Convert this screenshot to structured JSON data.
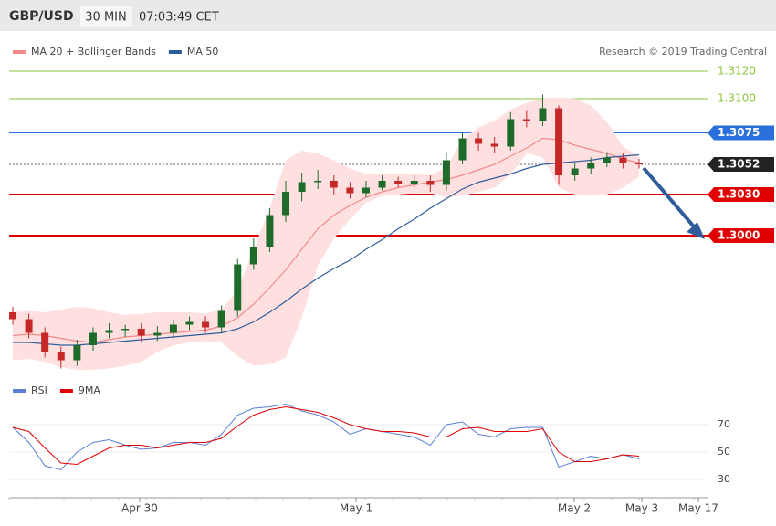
{
  "header": {
    "symbol": "GBP/USD",
    "interval": "30 MIN",
    "time": "07:03:49 CET"
  },
  "credit": "Research © 2019 Trading Central",
  "chart_data": [
    {
      "type": "candlestick",
      "up_color": "#1e6b2a",
      "down_color": "#c62828",
      "ylim": [
        1.2895,
        1.3132
      ],
      "candles": {
        "open": [
          1.2944,
          1.2939,
          1.2929,
          1.2915,
          1.2909,
          1.292,
          1.2929,
          1.2931,
          1.2932,
          1.2927,
          1.2929,
          1.2935,
          1.2937,
          1.2933,
          1.2945,
          1.2979,
          1.2992,
          1.3015,
          1.3032,
          1.3039,
          1.304,
          1.3035,
          1.3031,
          1.3035,
          1.304,
          1.3038,
          1.304,
          1.3037,
          1.3055,
          1.3071,
          1.3067,
          1.3065,
          1.3085,
          1.3084,
          1.3093,
          1.3044,
          1.3049,
          1.3053,
          1.3057,
          1.3053
        ],
        "high": [
          1.2948,
          1.2943,
          1.2933,
          1.2919,
          1.2924,
          1.2933,
          1.2936,
          1.2935,
          1.2936,
          1.2934,
          1.2939,
          1.2941,
          1.2941,
          1.2949,
          1.2983,
          1.2998,
          1.302,
          1.304,
          1.3046,
          1.3048,
          1.3044,
          1.3039,
          1.304,
          1.3044,
          1.3043,
          1.3044,
          1.3044,
          1.306,
          1.3076,
          1.3075,
          1.3072,
          1.309,
          1.3091,
          1.3103,
          1.3095,
          1.3053,
          1.3057,
          1.3061,
          1.306,
          1.3056
        ],
        "low": [
          1.2935,
          1.2925,
          1.2911,
          1.2903,
          1.2905,
          1.2916,
          1.2925,
          1.2926,
          1.2922,
          1.2923,
          1.2925,
          1.2931,
          1.2929,
          1.2929,
          1.2941,
          1.2975,
          1.2988,
          1.301,
          1.3025,
          1.3034,
          1.303,
          1.3027,
          1.3028,
          1.3033,
          1.3035,
          1.3035,
          1.3032,
          1.3033,
          1.3052,
          1.3062,
          1.306,
          1.3062,
          1.3079,
          1.308,
          1.3037,
          1.304,
          1.3045,
          1.305,
          1.3049,
          1.3049
        ],
        "close": [
          1.2939,
          1.2929,
          1.2915,
          1.2909,
          1.292,
          1.2929,
          1.2931,
          1.2932,
          1.2927,
          1.2929,
          1.2935,
          1.2937,
          1.2933,
          1.2945,
          1.2979,
          1.2992,
          1.3015,
          1.3032,
          1.3039,
          1.304,
          1.3035,
          1.3031,
          1.3035,
          1.304,
          1.3038,
          1.304,
          1.3037,
          1.3055,
          1.3071,
          1.3067,
          1.3065,
          1.3085,
          1.3084,
          1.3093,
          1.3044,
          1.3049,
          1.3053,
          1.3057,
          1.3053,
          1.3052
        ]
      },
      "series": [
        {
          "name": "MA 20 + Bollinger Bands",
          "color": "#f08a8a",
          "band_color": "#ffe0e0",
          "values": [
            1.2927,
            1.2928,
            1.2927,
            1.2925,
            1.2923,
            1.2922,
            1.2924,
            1.2926,
            1.2927,
            1.2928,
            1.2929,
            1.293,
            1.2931,
            1.2934,
            1.294,
            1.295,
            1.2962,
            1.2975,
            1.299,
            1.3005,
            1.3015,
            1.3022,
            1.3028,
            1.3032,
            1.3035,
            1.3037,
            1.3039,
            1.3041,
            1.3044,
            1.3048,
            1.3052,
            1.3058,
            1.3064,
            1.3071,
            1.307,
            1.3066,
            1.3063,
            1.306,
            1.3056,
            1.3053
          ],
          "upper": [
            1.2944,
            1.2945,
            1.2944,
            1.2946,
            1.2948,
            1.2947,
            1.2944,
            1.2942,
            1.2943,
            1.2944,
            1.2944,
            1.2944,
            1.2943,
            1.2946,
            1.296,
            1.299,
            1.302,
            1.3055,
            1.3062,
            1.306,
            1.3055,
            1.3049,
            1.3045,
            1.3045,
            1.3045,
            1.3045,
            1.3044,
            1.305,
            1.307,
            1.3079,
            1.3084,
            1.3092,
            1.3097,
            1.31,
            1.3101,
            1.31,
            1.3095,
            1.3083,
            1.3065,
            1.3058
          ],
          "lower": [
            1.2909,
            1.291,
            1.2908,
            1.2904,
            1.2902,
            1.2902,
            1.2903,
            1.2905,
            1.2908,
            1.2915,
            1.292,
            1.2922,
            1.2923,
            1.2922,
            1.2912,
            1.2905,
            1.2906,
            1.2911,
            1.294,
            1.2978,
            1.2998,
            1.3012,
            1.3024,
            1.3029,
            1.303,
            1.3031,
            1.3031,
            1.3028,
            1.3029,
            1.3032,
            1.3035,
            1.3045,
            1.306,
            1.3057,
            1.3035,
            1.303,
            1.3029,
            1.303,
            1.3035,
            1.3043
          ]
        },
        {
          "name": "MA 50",
          "color": "#2f5d9b",
          "values": [
            1.2922,
            1.2922,
            1.2921,
            1.292,
            1.292,
            1.2921,
            1.2922,
            1.2923,
            1.2924,
            1.2925,
            1.2926,
            1.2927,
            1.2928,
            1.2929,
            1.2932,
            1.2937,
            1.2944,
            1.2952,
            1.2961,
            1.2969,
            1.2976,
            1.2982,
            1.299,
            1.2997,
            1.3005,
            1.3012,
            1.302,
            1.3027,
            1.3034,
            1.3039,
            1.3042,
            1.3045,
            1.3049,
            1.3052,
            1.3053,
            1.3054,
            1.3055,
            1.3057,
            1.3058,
            1.3059
          ]
        }
      ],
      "levels": [
        {
          "value": 1.312,
          "label": "1.3120",
          "color": "#8cc63f",
          "line_style": "thin",
          "box": false
        },
        {
          "value": 1.31,
          "label": "1.3100",
          "color": "#8cc63f",
          "line_style": "thin",
          "box": false
        },
        {
          "value": 1.3075,
          "label": "1.3075",
          "color": "#2a6fdb",
          "line_style": "thin",
          "box": true
        },
        {
          "value": 1.3052,
          "label": "1.3052",
          "color": "#222222",
          "line_style": "dotted",
          "box": true
        },
        {
          "value": 1.303,
          "label": "1.3030",
          "color": "#e00000",
          "line_style": "thick",
          "box": true
        },
        {
          "value": 1.3,
          "label": "1.3000",
          "color": "#e00000",
          "line_style": "thick",
          "box": true
        }
      ]
    },
    {
      "type": "line",
      "ylim": [
        20,
        87
      ],
      "yticks": [
        30,
        50,
        70
      ],
      "xticks": [
        "Apr 30",
        "May 1",
        "May 2",
        "May 3",
        "May 17"
      ],
      "series": [
        {
          "name": "RSI",
          "color": "#5b7fd6",
          "values": [
            68,
            57,
            40,
            37,
            50,
            57,
            59,
            55,
            52,
            53,
            57,
            57,
            55,
            63,
            77,
            82,
            83,
            85,
            80,
            77,
            72,
            63,
            67,
            65,
            63,
            61,
            55,
            70,
            72,
            63,
            61,
            67,
            68,
            68,
            39,
            43,
            47,
            45,
            48,
            45
          ]
        },
        {
          "name": "9MA",
          "color": "#e00000",
          "values": [
            68,
            65,
            53,
            42,
            41,
            47,
            53,
            55,
            55,
            53,
            55,
            57,
            57,
            60,
            69,
            77,
            81,
            83,
            81,
            79,
            75,
            70,
            67,
            65,
            65,
            64,
            61,
            61,
            67,
            68,
            65,
            65,
            65,
            67,
            50,
            43,
            43,
            45,
            48,
            47
          ]
        }
      ]
    }
  ]
}
